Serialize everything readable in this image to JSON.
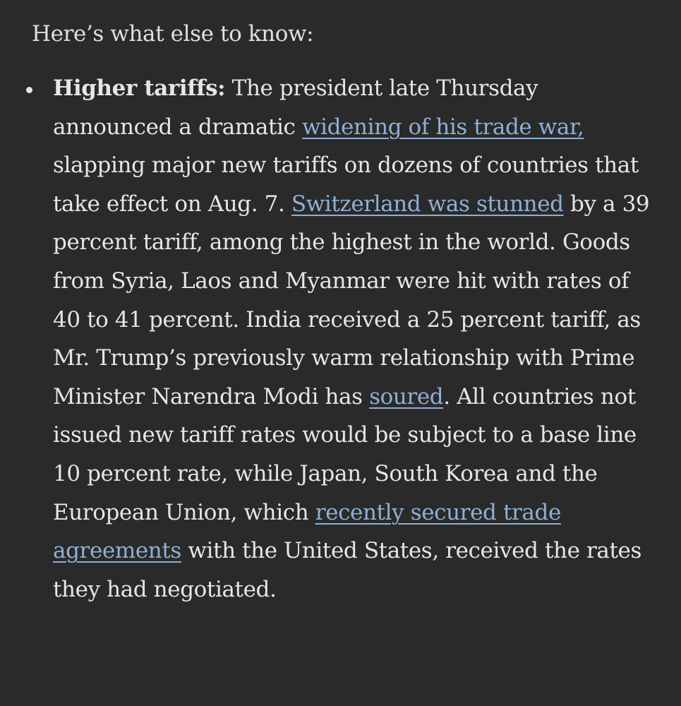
{
  "intro": "Here’s what else to know:",
  "bullet": {
    "lead": "Higher tariffs:",
    "t1": " The president late Thursday announced a dramatic ",
    "link1": "widening of his trade war,",
    "t2": " slapping major new tariffs on dozens of countries that take effect on Aug. 7. ",
    "link2": "Switzerland was stunned",
    "t3": " by a 39 percent tariff, among the highest in the world. Goods from Syria, Laos and Myanmar were hit with rates of 40 to 41 percent. India received a 25 percent tariff, as Mr. Trump’s previously warm relationship with Prime Minister Narendra Modi has ",
    "link3": "soured",
    "t4": ". All countries not issued new tariff rates would be subject to a base line 10 percent rate, while Japan, South Korea and the European Union, which ",
    "link4": "recently secured trade agreements",
    "t5": " with the United States, received the rates they had negotiated."
  },
  "colors": {
    "background": "#2a2a2a",
    "text": "#e6e6e6",
    "link": "#8fb0d6"
  }
}
